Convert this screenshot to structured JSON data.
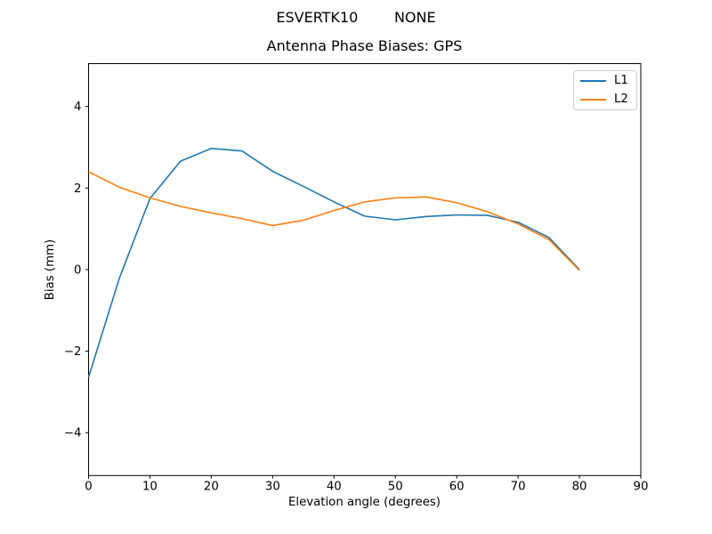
{
  "figure": {
    "suptitle": "ESVERTK10        NONE",
    "background": "#ffffff"
  },
  "chart_data": {
    "type": "line",
    "title": "Antenna Phase Biases: GPS",
    "xlabel": "Elevation angle (degrees)",
    "ylabel": "Bias (mm)",
    "xlim": [
      0,
      90
    ],
    "ylim": [
      -5.05,
      5.05
    ],
    "x_ticks": [
      0,
      10,
      20,
      30,
      40,
      50,
      60,
      70,
      80,
      90
    ],
    "x_tick_labels": [
      "0",
      "10",
      "20",
      "30",
      "40",
      "50",
      "60",
      "70",
      "80",
      "90"
    ],
    "y_ticks": [
      -4,
      -2,
      0,
      2,
      4
    ],
    "y_tick_labels": [
      "−4",
      "−2",
      "0",
      "2",
      "4"
    ],
    "grid": false,
    "legend_position": "upper right",
    "axis_color": "#000000",
    "x": [
      0,
      5,
      10,
      15,
      20,
      25,
      30,
      35,
      40,
      45,
      50,
      55,
      60,
      65,
      70,
      75,
      80
    ],
    "series": [
      {
        "name": "L1",
        "color": "#1f77b4",
        "values": [
          -2.64,
          -0.22,
          1.74,
          2.66,
          2.97,
          2.91,
          2.41,
          2.04,
          1.66,
          1.31,
          1.22,
          1.3,
          1.34,
          1.33,
          1.16,
          0.79,
          0.0
        ]
      },
      {
        "name": "L2",
        "color": "#ff7f0e",
        "values": [
          2.4,
          2.02,
          1.76,
          1.55,
          1.39,
          1.25,
          1.08,
          1.21,
          1.45,
          1.66,
          1.76,
          1.78,
          1.64,
          1.42,
          1.12,
          0.74,
          -0.02
        ]
      }
    ]
  }
}
